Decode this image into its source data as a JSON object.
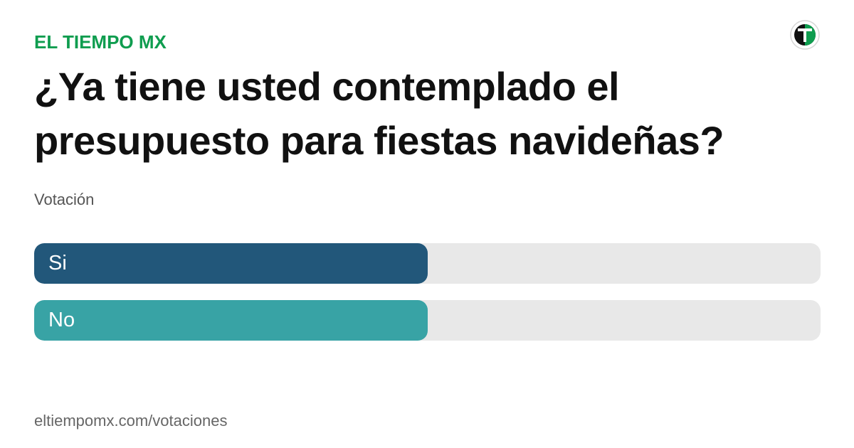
{
  "header": {
    "brand": "EL TIEMPO MX",
    "brand_color": "#0f9d4f",
    "logo_icon": "el-tiempo-logo"
  },
  "poll": {
    "question": "¿Ya tiene usted contemplado el presupuesto para fiestas navideñas?",
    "subtitle": "Votación",
    "options": [
      {
        "label": "Si",
        "fill_fraction": 0.5,
        "color": "#22577a"
      },
      {
        "label": "No",
        "fill_fraction": 0.5,
        "color": "#38a3a5"
      }
    ]
  },
  "footer": {
    "url": "eltiempomx.com/votaciones"
  }
}
